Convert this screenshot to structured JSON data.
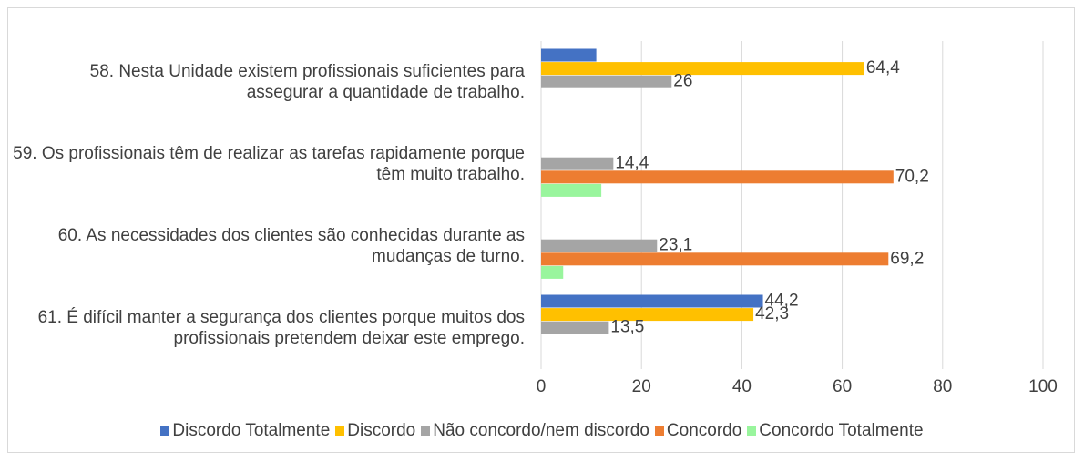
{
  "chart_data": {
    "type": "hbar",
    "categories": [
      "58. Nesta Unidade existem profissionais suficientes para assegurar a quantidade de trabalho.",
      "59. Os profissionais têm de realizar as tarefas rapidamente porque têm muito trabalho.",
      "60. As necessidades dos clientes são conhecidas durante as mudanças de turno.",
      "61. É difícil manter a segurança dos clientes porque muitos dos profissionais pretendem deixar este emprego."
    ],
    "series": [
      {
        "name": "Discordo Totalmente",
        "color": "#4472c4",
        "values": [
          11,
          null,
          null,
          44.2
        ],
        "value_labels": [
          null,
          null,
          null,
          "44,2"
        ]
      },
      {
        "name": "Discordo",
        "color": "#ffc000",
        "values": [
          64.4,
          null,
          null,
          42.3
        ],
        "value_labels": [
          "64,4",
          null,
          null,
          "42,3"
        ]
      },
      {
        "name": "Não concordo/nem discordo",
        "color": "#a5a5a5",
        "values": [
          26,
          14.4,
          23.1,
          13.5
        ],
        "value_labels": [
          "26",
          "14,4",
          "23,1",
          "13,5"
        ]
      },
      {
        "name": "Concordo",
        "color": "#ed7d31",
        "values": [
          null,
          70.2,
          69.2,
          null
        ],
        "value_labels": [
          null,
          "70,2",
          "69,2",
          null
        ]
      },
      {
        "name": "Concordo Totalmente",
        "color": "#99f59d",
        "values": [
          null,
          12,
          4.4,
          null
        ],
        "value_labels": [
          null,
          null,
          null,
          null
        ]
      }
    ],
    "xlim": [
      0,
      100
    ],
    "xticks": [
      0,
      20,
      40,
      60,
      80,
      100
    ],
    "grid": true,
    "legend": "bottom"
  }
}
